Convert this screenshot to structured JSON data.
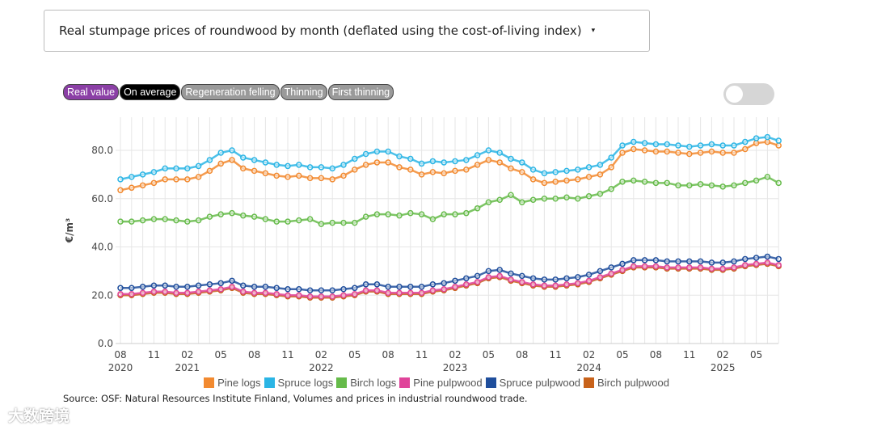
{
  "dropdown": {
    "label": "Real stumpage prices of roundwood by month (deflated using the cost-of-living index)",
    "caret": "▾"
  },
  "pills": [
    {
      "label": "Real value",
      "color": "#8b3fa6"
    },
    {
      "label": "On average",
      "color": "#000000"
    },
    {
      "label": "Regeneration felling",
      "color": "#9a9a9a"
    },
    {
      "label": "Thinning",
      "color": "#9a9a9a"
    },
    {
      "label": "First thinning",
      "color": "#9a9a9a"
    }
  ],
  "source": "Source: OSF: Natural Resources Institute Finland, Volumes and prices in industrial roundwood trade.",
  "watermark": "大数跨境",
  "chart_data": {
    "type": "line",
    "ylabel": "€/m³",
    "ylim": [
      0,
      90
    ],
    "yticks": [
      "0.0",
      "20.0",
      "40.0",
      "60.0",
      "80.0"
    ],
    "ytick_values": [
      0,
      20,
      40,
      60,
      80
    ],
    "x_start": "2020-08",
    "x_end": "2025-07",
    "xtick_labels": [
      "08",
      "11",
      "02",
      "05",
      "08",
      "11",
      "02",
      "05",
      "08",
      "11",
      "02",
      "05",
      "08",
      "11",
      "02",
      "05",
      "08",
      "11",
      "02",
      "05"
    ],
    "year_labels": [
      {
        "label": "2020",
        "index": 0
      },
      {
        "label": "2021",
        "index": 6
      },
      {
        "label": "2022",
        "index": 18
      },
      {
        "label": "2023",
        "index": 30
      },
      {
        "label": "2024",
        "index": 42
      },
      {
        "label": "2025",
        "index": 54
      }
    ],
    "grid": true,
    "legend": "bottom",
    "series": [
      {
        "name": "Pine logs",
        "color": "#f28a30",
        "values": [
          63.5,
          64.5,
          65.5,
          66.5,
          68,
          68,
          68,
          69,
          71.5,
          74.5,
          76,
          72.5,
          71.5,
          70.5,
          69.5,
          69,
          69.5,
          68.5,
          68.5,
          68,
          69.5,
          72,
          74,
          75,
          75,
          73,
          72,
          70,
          71,
          70.5,
          71.5,
          72,
          74,
          76,
          75,
          72.5,
          71,
          68,
          66.5,
          67,
          67.5,
          68,
          69,
          70,
          73,
          79,
          80.5,
          80,
          79.5,
          79.5,
          79,
          78.5,
          79,
          79.5,
          79,
          79,
          80.5,
          83,
          83.5,
          82
        ]
      },
      {
        "name": "Spruce logs",
        "color": "#2bb5e5",
        "values": [
          68,
          69,
          70,
          71,
          72.5,
          72.5,
          72.5,
          73.5,
          76,
          79,
          80,
          77,
          76,
          75,
          74,
          73.5,
          74,
          73,
          73,
          72.5,
          74,
          76.5,
          78.5,
          79.5,
          79.5,
          77.5,
          76.5,
          74.5,
          75.5,
          75,
          75.5,
          76,
          78,
          80,
          79,
          76.5,
          75,
          72,
          70.5,
          71,
          71.5,
          72,
          73,
          74,
          77,
          82,
          83.5,
          83,
          82.5,
          82.5,
          82,
          81.5,
          82,
          82.5,
          82,
          82,
          83.5,
          85,
          85.5,
          84
        ]
      },
      {
        "name": "Birch logs",
        "color": "#66bb4a",
        "values": [
          50.5,
          50.5,
          51,
          51.5,
          51.5,
          51,
          50.5,
          51,
          52.5,
          53.5,
          54,
          53,
          52.5,
          51.5,
          50.5,
          50.5,
          51,
          51.5,
          49.5,
          50,
          50,
          50,
          52.5,
          53.5,
          53.5,
          53,
          54,
          53.5,
          51.5,
          53.5,
          53.5,
          54,
          56,
          58.5,
          59.5,
          61.5,
          58.5,
          59.5,
          60,
          60,
          60.5,
          60,
          61,
          62,
          64,
          67,
          67.5,
          67,
          66.5,
          66.5,
          65.5,
          65.5,
          66,
          65.5,
          65,
          65.5,
          66.5,
          67.5,
          69,
          66.5
        ]
      },
      {
        "name": "Pine pulpwood",
        "color": "#e0449a",
        "values": [
          20.5,
          20.5,
          21,
          21.5,
          21.5,
          21,
          21,
          21.5,
          22,
          22.5,
          23.5,
          21.5,
          21,
          21,
          20.5,
          20,
          20,
          19.5,
          19.5,
          19.5,
          20,
          20.5,
          22,
          22,
          21,
          21,
          21,
          21,
          22,
          22.5,
          23.5,
          24.5,
          25.5,
          27.5,
          28,
          26.5,
          25.5,
          24.5,
          24,
          24,
          24.5,
          25,
          26,
          27.5,
          29,
          30.5,
          32,
          32,
          32,
          31.5,
          31.5,
          31.5,
          31.5,
          31,
          31,
          31.5,
          32.5,
          33,
          33.5,
          32.5
        ]
      },
      {
        "name": "Spruce pulpwood",
        "color": "#1f4e9c",
        "values": [
          23,
          23,
          23.5,
          24,
          24,
          23.5,
          23.5,
          24,
          24.5,
          25,
          26,
          24,
          23.5,
          23.5,
          23,
          22.5,
          22.5,
          22,
          22,
          22,
          22.5,
          23,
          24.5,
          24.5,
          23.5,
          23.5,
          23.5,
          23.5,
          24.5,
          25,
          26,
          27,
          28,
          30,
          30.5,
          29,
          28,
          27,
          26.5,
          26.5,
          27,
          27.5,
          28.5,
          30,
          31.5,
          33,
          34.5,
          34.5,
          34.5,
          34,
          34,
          34,
          34,
          33.5,
          33.5,
          34,
          35,
          35.5,
          36,
          35
        ]
      },
      {
        "name": "Birch pulpwood",
        "color": "#c8621a",
        "values": [
          20,
          20,
          20.5,
          21,
          21,
          20.5,
          20.5,
          21,
          21.5,
          22,
          23,
          21,
          20.5,
          20.5,
          20,
          19.5,
          19.5,
          19,
          19,
          19,
          19.5,
          20,
          21.5,
          21.5,
          20.5,
          20.5,
          20.5,
          20.5,
          21.5,
          22,
          23,
          24,
          25,
          27,
          27.5,
          26,
          25,
          24,
          23.5,
          23.5,
          24,
          24.5,
          25.5,
          27,
          28.5,
          30,
          31.5,
          31.5,
          31.5,
          31,
          31,
          31,
          31,
          30.5,
          30.5,
          31,
          32,
          32.5,
          33,
          32
        ]
      }
    ]
  }
}
